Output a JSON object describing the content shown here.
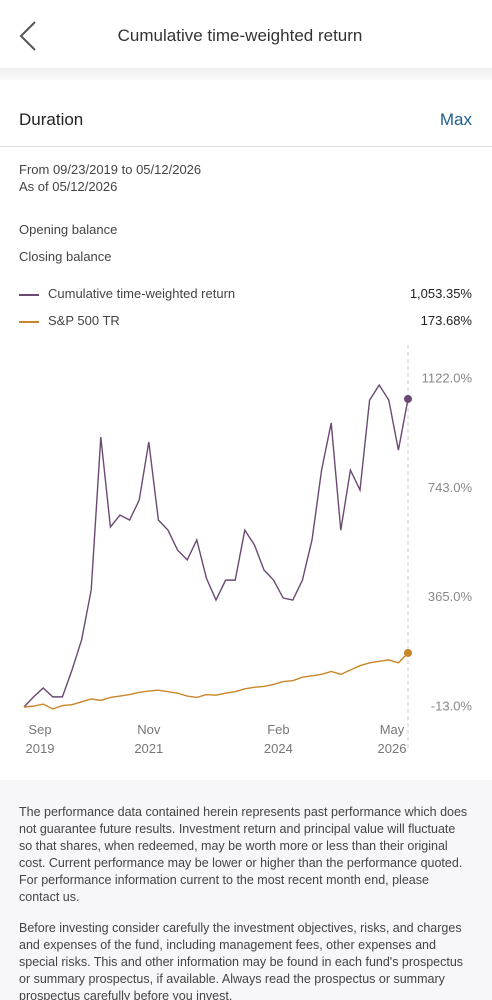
{
  "header": {
    "title": "Cumulative time-weighted return"
  },
  "duration": {
    "label": "Duration",
    "value": "Max"
  },
  "period": {
    "range": "From 09/23/2019 to 05/12/2026",
    "as_of": "As of 05/12/2026"
  },
  "balances": [
    "Opening balance",
    "Closing balance"
  ],
  "chart_data": {
    "type": "line",
    "x": [
      "2019-09",
      "2019-11",
      "2020-01",
      "2020-03",
      "2020-05",
      "2020-07",
      "2020-09",
      "2020-11",
      "2021-01",
      "2021-03",
      "2021-05",
      "2021-07",
      "2021-09",
      "2021-11",
      "2022-01",
      "2022-03",
      "2022-05",
      "2022-07",
      "2022-09",
      "2022-11",
      "2023-01",
      "2023-03",
      "2023-05",
      "2023-07",
      "2023-09",
      "2023-11",
      "2024-01",
      "2024-03",
      "2024-05",
      "2024-07",
      "2024-09",
      "2024-11",
      "2025-01",
      "2025-03",
      "2025-05",
      "2025-07",
      "2025-09",
      "2025-11",
      "2026-01",
      "2026-03",
      "2026-05"
    ],
    "series": [
      {
        "name": "Cumulative time-weighted return",
        "color": "#6b4a72",
        "return_label": "1,053.35%",
        "values": [
          -13,
          22,
          53,
          22,
          22,
          115,
          219,
          392,
          921,
          610,
          651,
          634,
          703,
          904,
          634,
          599,
          530,
          496,
          565,
          433,
          357,
          426,
          426,
          599,
          548,
          461,
          426,
          364,
          357,
          426,
          565,
          807,
          970,
          599,
          807,
          738,
          1049,
          1101,
          1049,
          876,
          1053
        ]
      },
      {
        "name": "S&P 500 TR",
        "color": "#c8862a",
        "return_label": "173.68%",
        "values": [
          -13,
          -10,
          -3,
          -20,
          -8,
          -5,
          5,
          15,
          10,
          20,
          25,
          30,
          38,
          42,
          45,
          40,
          35,
          25,
          20,
          30,
          28,
          35,
          40,
          50,
          55,
          58,
          65,
          75,
          78,
          90,
          95,
          100,
          110,
          100,
          115,
          130,
          140,
          145,
          150,
          140,
          174
        ]
      }
    ],
    "ylim": [
      -13,
      1122
    ],
    "yticks": [
      {
        "value": -13,
        "label": "-13.0%"
      },
      {
        "value": 365,
        "label": "365.0%"
      },
      {
        "value": 743,
        "label": "743.0%"
      },
      {
        "value": 1122,
        "label": "1122.0%"
      }
    ],
    "xticks": [
      {
        "value": "2019-09",
        "label": "Sep 2019"
      },
      {
        "value": "2021-11",
        "label": "Nov 2021"
      },
      {
        "value": "2024-02",
        "label": "Feb 2024"
      },
      {
        "value": "2026-05",
        "label": "May 2026"
      }
    ],
    "grid": false
  },
  "disclaimer": [
    "The performance data contained herein represents past performance which does not guarantee future results. Investment return and principal value will fluctuate so that shares, when redeemed, may be worth more or less than their original cost. Current performance may be lower or higher than the performance quoted. For performance information current to the most recent month end, please contact us.",
    "Before investing consider carefully the investment objectives, risks, and charges and expenses of the fund, including management fees, other expenses and special risks. This and other information may be found in each fund's prospectus or summary prospectus, if available. Always read the prospectus or summary prospectus carefully before you invest."
  ]
}
